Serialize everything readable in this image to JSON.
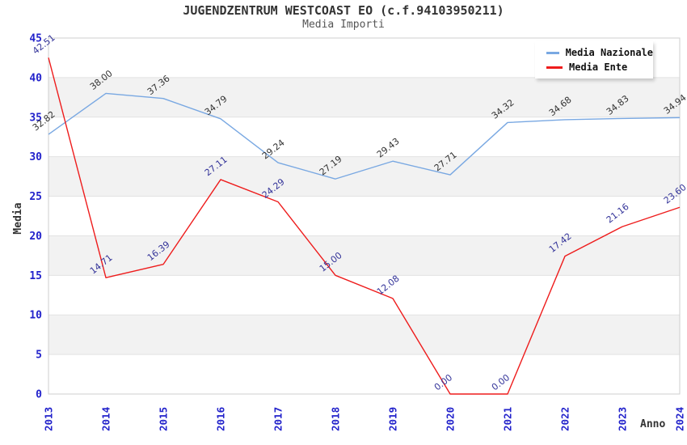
{
  "chart_data": {
    "type": "line",
    "title": "JUGENDZENTRUM WESTCOAST EO (c.f.94103950211)",
    "subtitle": "Media Importi",
    "xlabel": "Anno",
    "ylabel": "Media",
    "x": [
      "2013",
      "2014",
      "2015",
      "2016",
      "2017",
      "2018",
      "2019",
      "2020",
      "2021",
      "2022",
      "2023",
      "2024"
    ],
    "ylim": [
      0,
      45
    ],
    "ytick_step": 5,
    "grid": true,
    "alternating_bands": true,
    "legend_position": "top-right",
    "value_decimals": 2,
    "series": [
      {
        "name": "Media Nazionale",
        "color": "#79a8e2",
        "label_color": "#333333",
        "values": [
          32.82,
          38.0,
          37.36,
          34.79,
          29.24,
          27.19,
          29.43,
          27.71,
          34.32,
          34.68,
          34.83,
          34.94
        ]
      },
      {
        "name": "Media Ente",
        "color": "#ee1c1c",
        "label_color": "#333399",
        "values": [
          42.51,
          14.71,
          16.39,
          27.11,
          24.29,
          15.0,
          12.08,
          0.0,
          0.0,
          17.42,
          21.16,
          23.6
        ]
      }
    ],
    "colors": {
      "axis_tick_labels": "#2222cb",
      "band_gray": "#f2f2f2",
      "gridline": "#e2e2e2",
      "plot_border": "#cfcfcf",
      "title": "#333333",
      "subtitle": "#555555",
      "axis_title": "#333333"
    }
  }
}
